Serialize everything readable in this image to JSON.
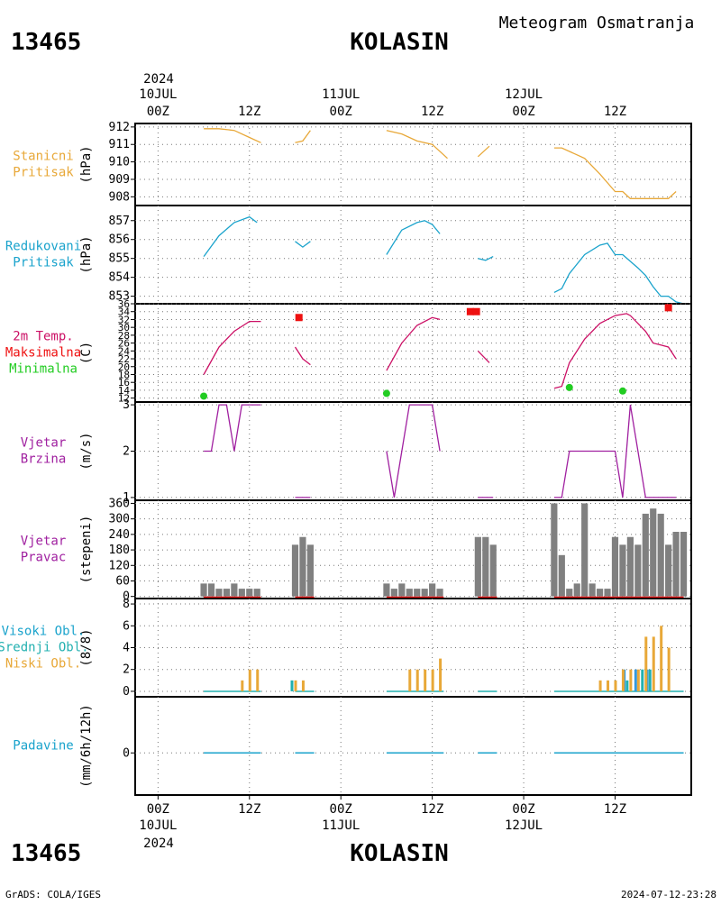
{
  "header": {
    "station_id": "13465",
    "station_name": "KOLASIN",
    "product": "Meteogram Osmatranja"
  },
  "footer": {
    "station_id": "13465",
    "station_name": "KOLASIN",
    "credit": "GrADS: COLA/IGES",
    "timestamp": "2024-07-12-23:28"
  },
  "time_axis": {
    "top_year": "2024",
    "bottom_year": "2024",
    "ticks": [
      {
        "hour": 0,
        "label": "00Z",
        "date": "10JUL"
      },
      {
        "hour": 12,
        "label": "12Z",
        "date": ""
      },
      {
        "hour": 24,
        "label": "00Z",
        "date": "11JUL"
      },
      {
        "hour": 36,
        "label": "12Z",
        "date": ""
      },
      {
        "hour": 48,
        "label": "00Z",
        "date": "12JUL"
      },
      {
        "hour": 60,
        "label": "12Z",
        "date": ""
      }
    ],
    "range_hours": [
      -3,
      70
    ]
  },
  "colors": {
    "pressure": "#e8a838",
    "reduced": "#1aa3cc",
    "temp": "#cc1166",
    "tmax": "#ee1111",
    "tmin": "#22cc22",
    "wind": "#a020a0",
    "bars": "#808080",
    "low_cloud": "#e8a838",
    "mid_cloud": "#22b0b0",
    "high_cloud": "#3399dd",
    "precip": "#1aa3cc"
  },
  "chart_data": [
    {
      "type": "line",
      "panel": "station_pressure",
      "labels": [
        "Stanicni",
        "Pritisak"
      ],
      "ylabel": "(hPa)",
      "ylim": [
        907.5,
        912.2
      ],
      "yticks": [
        908,
        909,
        910,
        911,
        912
      ],
      "grid": true,
      "segments": [
        [
          [
            6,
            911.9
          ],
          [
            8,
            911.9
          ],
          [
            10,
            911.8
          ],
          [
            12,
            911.4
          ],
          [
            13.5,
            911.1
          ]
        ],
        [
          [
            18,
            911.1
          ],
          [
            19,
            911.2
          ],
          [
            20,
            911.8
          ]
        ],
        [
          [
            30,
            911.8
          ],
          [
            32,
            911.6
          ],
          [
            34,
            911.2
          ],
          [
            36,
            911.0
          ],
          [
            38,
            910.2
          ]
        ],
        [
          [
            42,
            910.3
          ],
          [
            43.5,
            910.9
          ]
        ],
        [
          [
            52,
            910.8
          ],
          [
            53,
            910.8
          ],
          [
            56,
            910.2
          ],
          [
            58,
            909.3
          ],
          [
            60,
            908.3
          ],
          [
            61,
            908.3
          ],
          [
            62,
            907.9
          ],
          [
            64,
            907.9
          ],
          [
            66,
            907.9
          ],
          [
            67,
            907.9
          ],
          [
            68,
            908.3
          ]
        ]
      ]
    },
    {
      "type": "line",
      "panel": "reduced_pressure",
      "labels": [
        "Redukovani",
        "Pritisak"
      ],
      "ylabel": "(hPa)",
      "ylim": [
        852.6,
        857.8
      ],
      "yticks": [
        853,
        854,
        855,
        856,
        857
      ],
      "grid": true,
      "segments": [
        [
          [
            6,
            855.1
          ],
          [
            8,
            856.2
          ],
          [
            10,
            856.9
          ],
          [
            12,
            857.2
          ],
          [
            13,
            856.9
          ]
        ],
        [
          [
            18,
            855.9
          ],
          [
            19,
            855.6
          ],
          [
            20,
            855.9
          ]
        ],
        [
          [
            30,
            855.2
          ],
          [
            32,
            856.5
          ],
          [
            34,
            856.9
          ],
          [
            35,
            857.0
          ],
          [
            36,
            856.8
          ],
          [
            37,
            856.3
          ]
        ],
        [
          [
            42,
            855.0
          ],
          [
            43,
            854.9
          ],
          [
            44,
            855.1
          ]
        ],
        [
          [
            52,
            853.2
          ],
          [
            53,
            853.4
          ],
          [
            54,
            854.2
          ],
          [
            56,
            855.2
          ],
          [
            58,
            855.7
          ],
          [
            59,
            855.8
          ],
          [
            60,
            855.2
          ],
          [
            61,
            855.2
          ],
          [
            63,
            854.5
          ],
          [
            64,
            854.1
          ],
          [
            65,
            853.5
          ],
          [
            66,
            853.0
          ],
          [
            67,
            853.0
          ],
          [
            68,
            852.7
          ],
          [
            69,
            852.6
          ]
        ]
      ]
    },
    {
      "type": "line",
      "panel": "temperature",
      "labels": [
        "2m Temp.",
        "Maksimalna",
        "Minimalna"
      ],
      "ylabel": "(C)",
      "ylim": [
        11,
        36
      ],
      "yticks": [
        12,
        14,
        16,
        18,
        20,
        22,
        24,
        26,
        28,
        30,
        32,
        34,
        36
      ],
      "grid": true,
      "segments": [
        [
          [
            6,
            18
          ],
          [
            8,
            25
          ],
          [
            10,
            29
          ],
          [
            12,
            31.5
          ],
          [
            13.5,
            31.5
          ]
        ],
        [
          [
            18,
            25
          ],
          [
            19,
            22
          ],
          [
            20,
            20.5
          ]
        ],
        [
          [
            30,
            19
          ],
          [
            32,
            26
          ],
          [
            34,
            30.5
          ],
          [
            36,
            32.5
          ],
          [
            37,
            32.0
          ]
        ],
        [
          [
            42,
            24
          ],
          [
            43.5,
            21
          ]
        ],
        [
          [
            52,
            14.5
          ],
          [
            53,
            15
          ],
          [
            54,
            21
          ],
          [
            56,
            27
          ],
          [
            58,
            31
          ],
          [
            60,
            33
          ],
          [
            61.5,
            33.5
          ],
          [
            62,
            33
          ],
          [
            64,
            29
          ],
          [
            65,
            26
          ],
          [
            66,
            25.5
          ],
          [
            67,
            25
          ],
          [
            68,
            22
          ]
        ]
      ],
      "tmax": [
        [
          18.5,
          32.5
        ],
        [
          41,
          34
        ],
        [
          41.8,
          34
        ],
        [
          67,
          35.0
        ]
      ],
      "tmin": [
        [
          6,
          12.5
        ],
        [
          30,
          13.2
        ],
        [
          54,
          14.7
        ],
        [
          61,
          13.8
        ]
      ]
    },
    {
      "type": "line",
      "panel": "wind_speed",
      "labels": [
        "Vjetar",
        "Brzina"
      ],
      "ylabel": "(m/s)",
      "ylim": [
        0.94,
        3.06
      ],
      "yticks": [
        1,
        2,
        3
      ],
      "grid": true,
      "segments": [
        [
          [
            6,
            2
          ],
          [
            7,
            2
          ],
          [
            8,
            3
          ],
          [
            9,
            3
          ],
          [
            10,
            2
          ],
          [
            11,
            3
          ],
          [
            12,
            3
          ],
          [
            13.5,
            3
          ]
        ],
        [
          [
            18,
            1
          ],
          [
            20,
            1
          ]
        ],
        [
          [
            30,
            2
          ],
          [
            31,
            1
          ],
          [
            33,
            3
          ],
          [
            36,
            3
          ],
          [
            37,
            2
          ]
        ],
        [
          [
            42,
            1
          ],
          [
            44,
            1
          ]
        ],
        [
          [
            52,
            1
          ],
          [
            53,
            1
          ],
          [
            54,
            2
          ],
          [
            58,
            2
          ],
          [
            60,
            2
          ],
          [
            61,
            1
          ],
          [
            62,
            3
          ],
          [
            64,
            1
          ],
          [
            68,
            1
          ]
        ]
      ]
    },
    {
      "type": "bar",
      "panel": "wind_direction",
      "labels": [
        "Vjetar",
        "Pravac"
      ],
      "ylabel": "(stepeni)",
      "ylim": [
        -8,
        372
      ],
      "yticks": [
        0,
        60,
        120,
        180,
        240,
        300,
        360
      ],
      "grid": true,
      "x": [
        6,
        7,
        8,
        9,
        10,
        11,
        12,
        13,
        18,
        19,
        20,
        30,
        31,
        32,
        33,
        34,
        35,
        36,
        37,
        42,
        43,
        44,
        52,
        53,
        54,
        55,
        56,
        57,
        58,
        59,
        60,
        61,
        62,
        63,
        64,
        65,
        66,
        67,
        68,
        69
      ],
      "values": [
        50,
        50,
        30,
        30,
        50,
        30,
        30,
        30,
        200,
        230,
        200,
        50,
        30,
        50,
        30,
        30,
        30,
        50,
        30,
        230,
        230,
        200,
        360,
        160,
        30,
        50,
        360,
        50,
        30,
        30,
        230,
        200,
        230,
        200,
        320,
        340,
        320,
        200,
        250,
        250
      ]
    },
    {
      "type": "bar",
      "panel": "clouds",
      "labels": [
        "Visoki Obl.",
        "Srednji Obl.",
        "Niski Obl."
      ],
      "ylabel": "(8/8)",
      "ylim": [
        -0.5,
        8.5
      ],
      "yticks": [
        0,
        2,
        4,
        6,
        8
      ],
      "grid": true,
      "baseline_hours": [
        [
          6,
          13.5
        ],
        [
          18,
          20.5
        ],
        [
          30,
          37.5
        ],
        [
          42,
          44.5
        ],
        [
          52,
          69
        ]
      ],
      "low": [
        [
          11,
          1
        ],
        [
          12,
          2
        ],
        [
          13,
          2
        ],
        [
          18,
          1
        ],
        [
          19,
          1
        ],
        [
          33,
          2
        ],
        [
          34,
          2
        ],
        [
          35,
          2
        ],
        [
          36,
          2
        ],
        [
          37,
          3
        ],
        [
          58,
          1
        ],
        [
          59,
          1
        ],
        [
          60,
          1
        ],
        [
          61,
          2
        ],
        [
          62,
          2
        ],
        [
          63,
          2
        ],
        [
          64,
          5
        ],
        [
          65,
          5
        ],
        [
          66,
          6
        ],
        [
          67,
          4
        ]
      ],
      "mid": [
        [
          18,
          1
        ],
        [
          62,
          1
        ],
        [
          64,
          2
        ],
        [
          65,
          2
        ]
      ],
      "high": [
        [
          61.5,
          2
        ],
        [
          63,
          2
        ],
        [
          64.5,
          2
        ]
      ]
    },
    {
      "type": "bar",
      "panel": "precipitation",
      "labels": [
        "Padavine"
      ],
      "ylabel": "(mm/6h/12h)",
      "ylim": [
        -3,
        4
      ],
      "yticks": [
        0
      ],
      "grid": true,
      "baseline_hours": [
        [
          6,
          13.5
        ],
        [
          18,
          20.5
        ],
        [
          30,
          37.5
        ],
        [
          42,
          44.5
        ],
        [
          52,
          69
        ]
      ],
      "values": [
        0
      ]
    }
  ]
}
